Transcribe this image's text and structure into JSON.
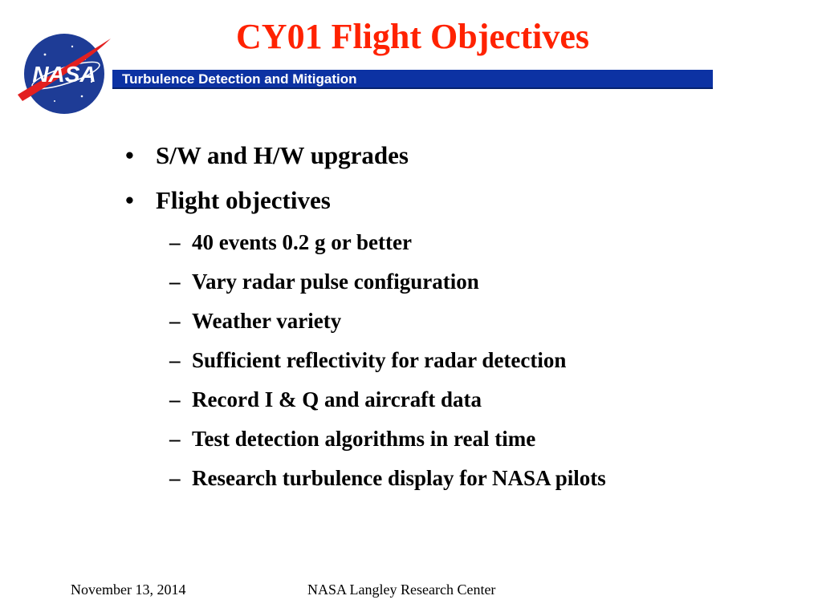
{
  "slide": {
    "title": "CY01 Flight Objectives",
    "banner": "Turbulence Detection and Mitigation",
    "logo_text": "NASA",
    "bullets": [
      {
        "label": "S/W and H/W upgrades"
      },
      {
        "label": "Flight objectives"
      }
    ],
    "sub_bullets": [
      "40 events 0.2 g or better",
      "Vary radar pulse configuration",
      "Weather variety",
      "Sufficient reflectivity for radar detection",
      "Record I & Q and aircraft data",
      "Test detection algorithms in real time",
      "Research turbulence display for NASA pilots"
    ],
    "bullet_marker": "•",
    "sub_marker": "–"
  },
  "footer": {
    "date": "November 13, 2014",
    "organization": "NASA Langley Research Center"
  },
  "colors": {
    "title": "#ff2200",
    "banner": "#0c32a3",
    "logo_blue": "#1e3c96",
    "logo_red": "#e32020"
  }
}
